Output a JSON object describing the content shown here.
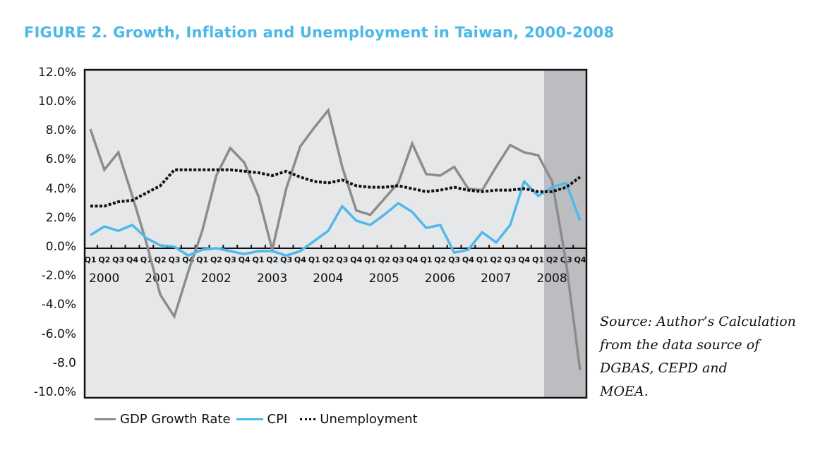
{
  "figure": {
    "title": "FIGURE 2. Growth, Inflation and Unemployment in Taiwan, 2000-2008",
    "source_note": [
      "Source: Author’s Calculation",
      "from the data source of",
      "DGBAS, CEPD and",
      "MOEA."
    ]
  },
  "colors": {
    "title": "#4bb8e8",
    "plot_bg": "#e6e7e9",
    "shaded_bg": "#bcbdc0",
    "gdp": "#8c8c8c",
    "cpi": "#4fb8ec",
    "unemployment": "#111111"
  },
  "chart_data": {
    "type": "line",
    "title": "FIGURE 2. Growth, Inflation and Unemployment in Taiwan, 2000-2008",
    "xlabel": "",
    "ylabel": "",
    "ylim": [
      -10,
      12
    ],
    "y_ticks": [
      "12.0%",
      "10.0%",
      "8.0%",
      "6.0%",
      "4.0%",
      "2.0%",
      "0.0%",
      "-2.0%",
      "-4.0%",
      "-6.0%",
      "-8.0",
      "-10.0%"
    ],
    "y_tick_values": [
      12,
      10,
      8,
      6,
      4,
      2,
      0,
      -2,
      -4,
      -6,
      -8,
      -10
    ],
    "grid": false,
    "legend_position": "bottom",
    "quarter_labels": [
      "Q1",
      "Q2",
      "Q3",
      "Q4",
      "Q1",
      "Q2",
      "Q3",
      "Q4",
      "Q1",
      "Q2",
      "Q3",
      "Q4",
      "Q1",
      "Q2",
      "Q3",
      "Q4",
      "Q1",
      "Q2",
      "Q3",
      "Q4",
      "Q1",
      "Q2",
      "Q3",
      "Q4",
      "Q1",
      "Q2",
      "Q3",
      "Q4",
      "Q1",
      "Q2",
      "Q3",
      "Q4",
      "Q1",
      "Q2",
      "Q3",
      "Q4"
    ],
    "year_labels": [
      "2000",
      "2001",
      "2002",
      "2003",
      "2004",
      "2005",
      "2006",
      "2007",
      "2008"
    ],
    "x": [
      "2000Q1",
      "2000Q2",
      "2000Q3",
      "2000Q4",
      "2001Q1",
      "2001Q2",
      "2001Q3",
      "2001Q4",
      "2002Q1",
      "2002Q2",
      "2002Q3",
      "2002Q4",
      "2003Q1",
      "2003Q2",
      "2003Q3",
      "2003Q4",
      "2004Q1",
      "2004Q2",
      "2004Q3",
      "2004Q4",
      "2005Q1",
      "2005Q2",
      "2005Q3",
      "2005Q4",
      "2006Q1",
      "2006Q2",
      "2006Q3",
      "2006Q4",
      "2007Q1",
      "2007Q2",
      "2007Q3",
      "2007Q4",
      "2008Q1",
      "2008Q2",
      "2008Q3",
      "2008Q4"
    ],
    "shaded_region": {
      "from": "2008Q1.5",
      "to": "2008Q4"
    },
    "series": [
      {
        "name": "GDP Growth Rate",
        "values": [
          8.2,
          5.4,
          6.6,
          3.6,
          0.4,
          -3.2,
          -4.7,
          -1.6,
          1.2,
          5.0,
          6.9,
          5.9,
          3.6,
          -0.1,
          4.1,
          7.0,
          8.3,
          9.5,
          5.6,
          2.6,
          2.3,
          3.4,
          4.5,
          7.2,
          5.1,
          5.0,
          5.6,
          4.1,
          4.0,
          5.6,
          7.1,
          6.6,
          6.4,
          4.6,
          -1.0,
          -8.4
        ]
      },
      {
        "name": "CPI",
        "values": [
          0.9,
          1.5,
          1.2,
          1.6,
          0.7,
          0.2,
          0.1,
          -0.5,
          -0.1,
          0.0,
          -0.2,
          -0.4,
          -0.2,
          -0.2,
          -0.5,
          -0.2,
          0.5,
          1.2,
          2.9,
          1.9,
          1.6,
          2.3,
          3.1,
          2.5,
          1.4,
          1.6,
          -0.3,
          -0.1,
          1.1,
          0.4,
          1.6,
          4.6,
          3.6,
          4.2,
          4.5,
          1.9
        ]
      },
      {
        "name": "Unemployment",
        "values": [
          2.9,
          2.9,
          3.2,
          3.3,
          3.8,
          4.3,
          5.4,
          5.4,
          5.4,
          5.4,
          5.4,
          5.3,
          5.2,
          5.0,
          5.3,
          4.9,
          4.6,
          4.5,
          4.7,
          4.3,
          4.2,
          4.2,
          4.3,
          4.1,
          3.9,
          4.0,
          4.2,
          4.0,
          3.9,
          4.0,
          4.0,
          4.1,
          3.9,
          3.9,
          4.2,
          4.9
        ]
      }
    ]
  },
  "legend": {
    "items": [
      {
        "label": "GDP Growth Rate"
      },
      {
        "label": "CPI"
      },
      {
        "label": "Unemployment"
      }
    ]
  }
}
